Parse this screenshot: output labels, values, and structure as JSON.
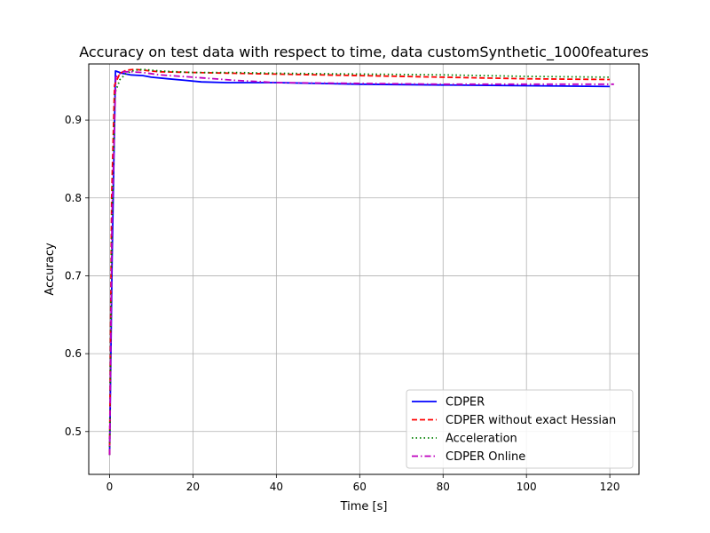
{
  "chart_data": {
    "type": "line",
    "title": "Accuracy on test data with respect to time, data customSynthetic_1000features",
    "xlabel": "Time [s]",
    "ylabel": "Accuracy",
    "xlim": [
      -5,
      127
    ],
    "ylim": [
      0.445,
      0.972
    ],
    "xticks": [
      0,
      20,
      40,
      60,
      80,
      100,
      120
    ],
    "xtick_labels": [
      "0",
      "20",
      "40",
      "60",
      "80",
      "100",
      "120"
    ],
    "yticks": [
      0.5,
      0.6,
      0.7,
      0.8,
      0.9
    ],
    "ytick_labels": [
      "0.5",
      "0.6",
      "0.7",
      "0.8",
      "0.9"
    ],
    "grid": true,
    "legend_position": "lower-right",
    "series": [
      {
        "name": "CDPER",
        "color": "#0000ff",
        "dash": "solid",
        "x": [
          0,
          0.6,
          1.4,
          3,
          5,
          8,
          10,
          14,
          18,
          22,
          28,
          40,
          60,
          80,
          100,
          120
        ],
        "y": [
          0.47,
          0.72,
          0.963,
          0.96,
          0.958,
          0.957,
          0.955,
          0.953,
          0.951,
          0.949,
          0.948,
          0.948,
          0.946,
          0.945,
          0.944,
          0.943
        ]
      },
      {
        "name": "CDPER without exact Hessian",
        "color": "#ff0000",
        "dash": "dashed",
        "x": [
          0,
          0.5,
          1.2,
          2.5,
          4,
          6,
          8,
          12,
          20,
          30,
          40,
          60,
          80,
          100,
          120
        ],
        "y": [
          0.47,
          0.8,
          0.945,
          0.96,
          0.964,
          0.965,
          0.964,
          0.962,
          0.961,
          0.96,
          0.959,
          0.957,
          0.955,
          0.953,
          0.952
        ]
      },
      {
        "name": "Acceleration",
        "color": "#008000",
        "dash": "dotted",
        "x": [
          0,
          0.5,
          1.3,
          2.5,
          4,
          6,
          8,
          12,
          20,
          30,
          40,
          60,
          80,
          100,
          120
        ],
        "y": [
          0.47,
          0.75,
          0.935,
          0.952,
          0.96,
          0.964,
          0.965,
          0.963,
          0.961,
          0.961,
          0.96,
          0.959,
          0.958,
          0.956,
          0.955
        ]
      },
      {
        "name": "CDPER Online",
        "color": "#bf00bf",
        "dash": "dashdot",
        "x": [
          0,
          0.6,
          1.5,
          3,
          5,
          8,
          12,
          20,
          30,
          40,
          60,
          80,
          100,
          121
        ],
        "y": [
          0.47,
          0.78,
          0.955,
          0.962,
          0.962,
          0.961,
          0.958,
          0.955,
          0.951,
          0.948,
          0.947,
          0.946,
          0.946,
          0.946
        ]
      }
    ]
  }
}
